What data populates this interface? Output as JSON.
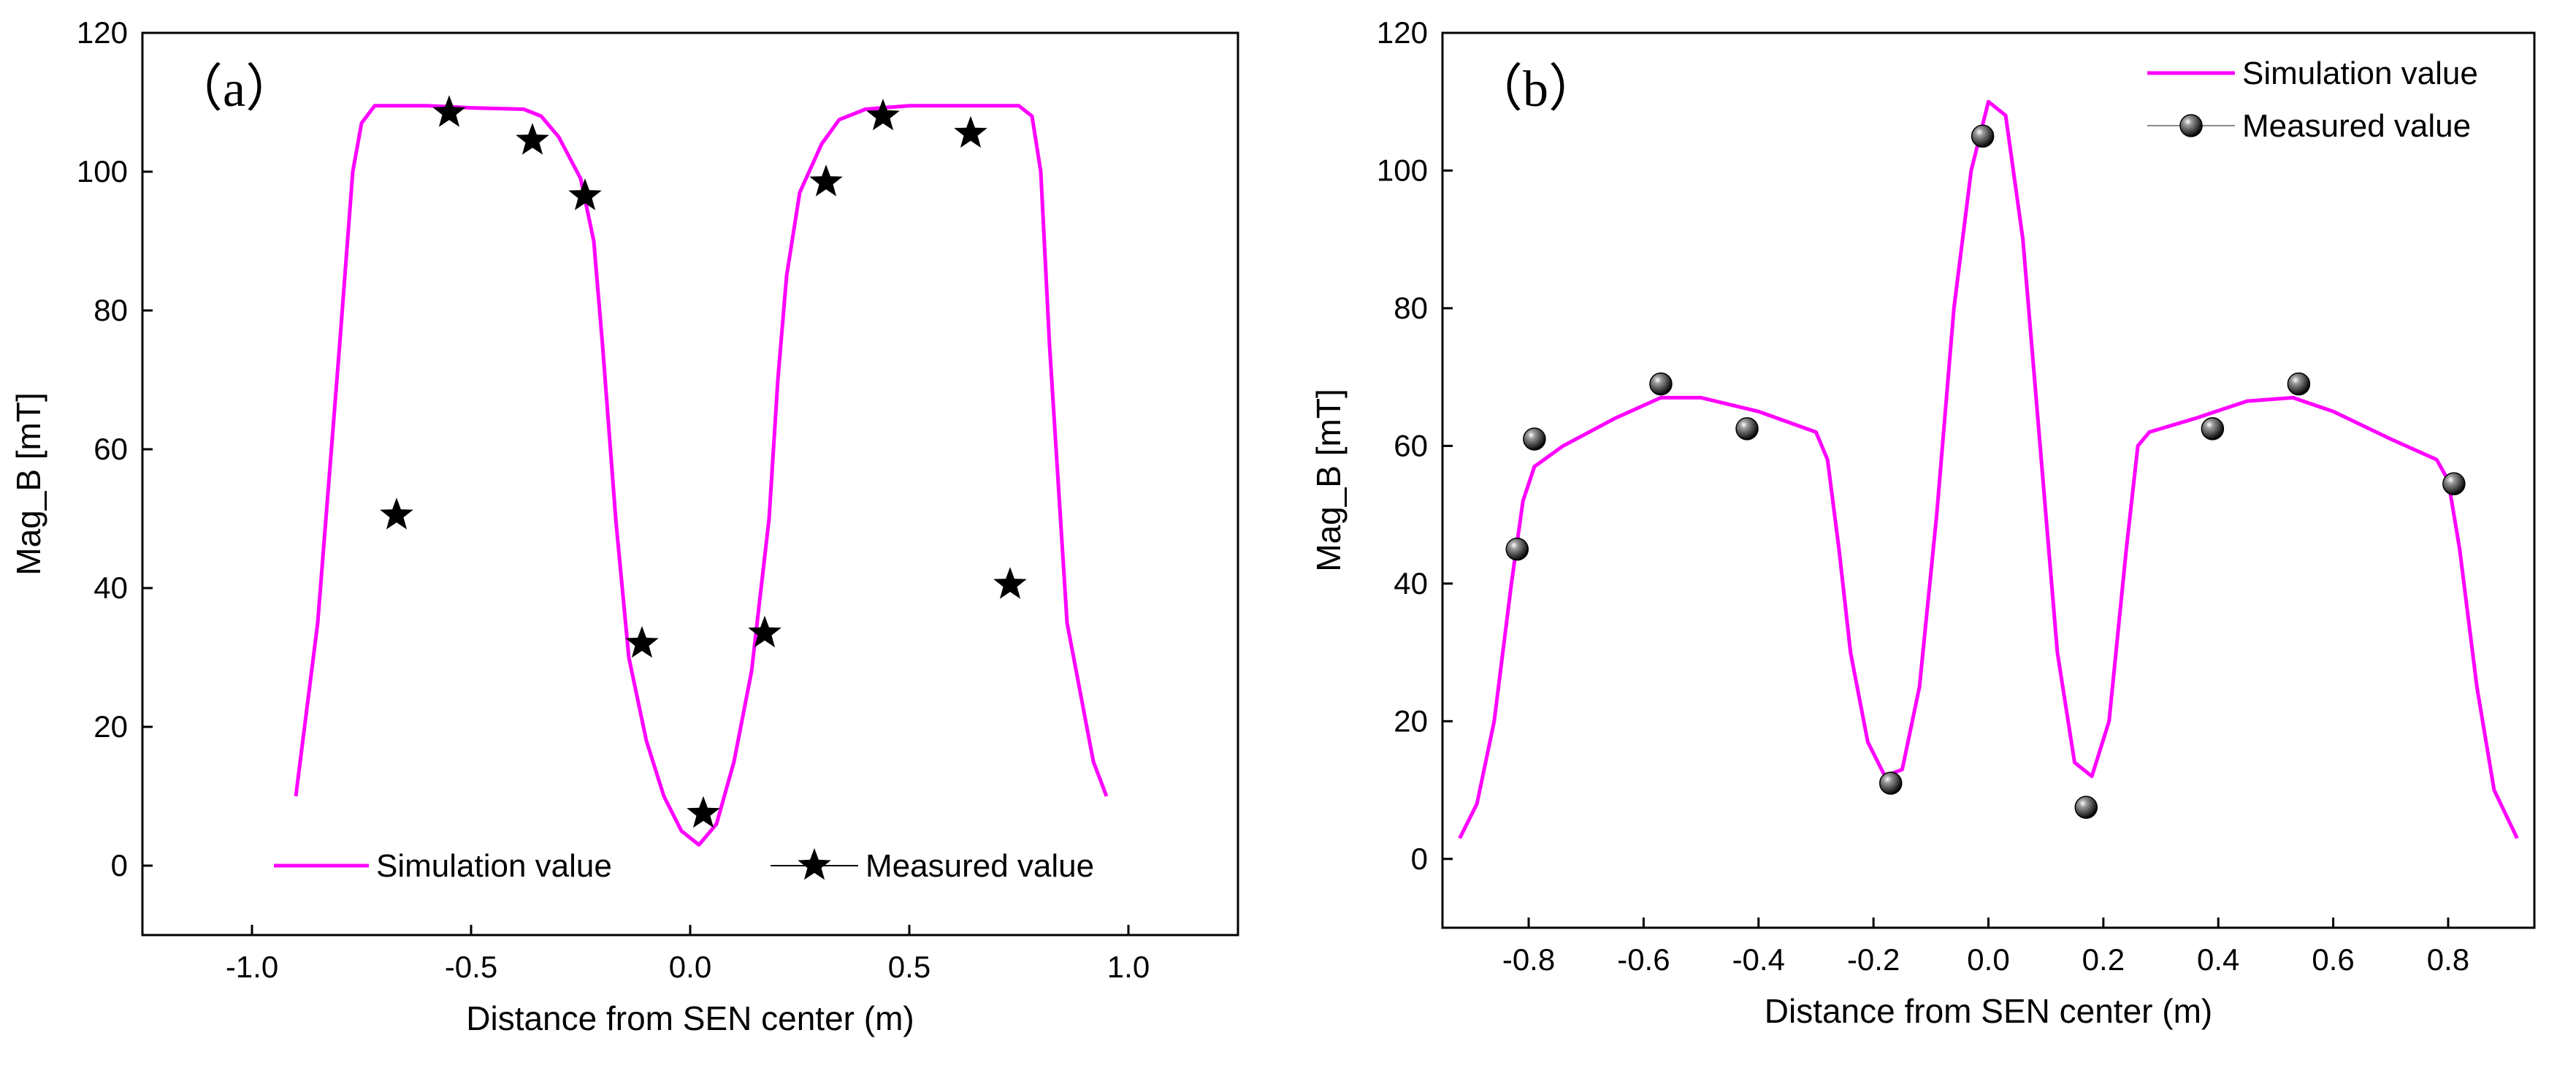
{
  "chart_data": [
    {
      "type": "line",
      "panel_label": "（a）",
      "xlabel": "Distance from SEN center (m)",
      "ylabel": "Mag_B [mT]",
      "xlim": [
        -1.25,
        1.25
      ],
      "ylim": [
        -10,
        120
      ],
      "xticks": [
        -1.0,
        -0.5,
        0.0,
        0.5,
        1.0
      ],
      "xtick_labels": [
        "-1.0",
        "-0.5",
        "0.0",
        "0.5",
        "1.0"
      ],
      "yticks": [
        0,
        20,
        40,
        60,
        80,
        100,
        120
      ],
      "ytick_labels": [
        "0",
        "20",
        "40",
        "60",
        "80",
        "100",
        "120"
      ],
      "legend_position": "bottom",
      "series": [
        {
          "name": "Simulation value",
          "kind": "line",
          "color": "#ff00ff",
          "points": [
            [
              -0.9,
              10
            ],
            [
              -0.85,
              35
            ],
            [
              -0.8,
              75
            ],
            [
              -0.77,
              100
            ],
            [
              -0.75,
              107
            ],
            [
              -0.72,
              109.5
            ],
            [
              -0.6,
              109.5
            ],
            [
              -0.5,
              109.2
            ],
            [
              -0.38,
              109
            ],
            [
              -0.34,
              108
            ],
            [
              -0.3,
              105
            ],
            [
              -0.25,
              99
            ],
            [
              -0.22,
              90
            ],
            [
              -0.2,
              75
            ],
            [
              -0.17,
              50
            ],
            [
              -0.14,
              30
            ],
            [
              -0.1,
              18
            ],
            [
              -0.06,
              10
            ],
            [
              -0.02,
              5
            ],
            [
              0.02,
              3
            ],
            [
              0.06,
              6
            ],
            [
              0.1,
              15
            ],
            [
              0.14,
              28
            ],
            [
              0.18,
              50
            ],
            [
              0.2,
              70
            ],
            [
              0.22,
              85
            ],
            [
              0.25,
              97
            ],
            [
              0.3,
              104
            ],
            [
              0.34,
              107.5
            ],
            [
              0.4,
              109
            ],
            [
              0.5,
              109.5
            ],
            [
              0.65,
              109.5
            ],
            [
              0.75,
              109.5
            ],
            [
              0.78,
              108
            ],
            [
              0.8,
              100
            ],
            [
              0.82,
              75
            ],
            [
              0.86,
              35
            ],
            [
              0.92,
              15
            ],
            [
              0.95,
              10
            ]
          ]
        },
        {
          "name": "Measured value",
          "kind": "scatter",
          "marker": "star",
          "color": "#000000",
          "points": [
            [
              -0.67,
              50.5
            ],
            [
              -0.55,
              108.5
            ],
            [
              -0.36,
              104.5
            ],
            [
              -0.24,
              96.5
            ],
            [
              -0.11,
              32
            ],
            [
              0.03,
              7.5
            ],
            [
              0.17,
              33.5
            ],
            [
              0.31,
              98.5
            ],
            [
              0.44,
              108
            ],
            [
              0.64,
              105.5
            ],
            [
              0.73,
              40.5
            ]
          ]
        }
      ]
    },
    {
      "type": "line",
      "panel_label": "（b）",
      "xlabel": "Distance from SEN center  (m)",
      "ylabel": "Mag_B [mT]",
      "xlim": [
        -0.95,
        0.95
      ],
      "ylim": [
        -10,
        120
      ],
      "xticks": [
        -0.8,
        -0.6,
        -0.4,
        -0.2,
        0.0,
        0.2,
        0.4,
        0.6,
        0.8
      ],
      "xtick_labels": [
        "-0.8",
        "-0.6",
        "-0.4",
        "-0.2",
        "0.0",
        "0.2",
        "0.4",
        "0.6",
        "0.8"
      ],
      "yticks": [
        0,
        20,
        40,
        60,
        80,
        100,
        120
      ],
      "ytick_labels": [
        "0",
        "20",
        "40",
        "60",
        "80",
        "100",
        "120"
      ],
      "legend_position": "top-right",
      "series": [
        {
          "name": "Simulation value",
          "kind": "line",
          "color": "#ff00ff",
          "points": [
            [
              -0.92,
              3
            ],
            [
              -0.89,
              8
            ],
            [
              -0.86,
              20
            ],
            [
              -0.83,
              40
            ],
            [
              -0.81,
              52
            ],
            [
              -0.79,
              57
            ],
            [
              -0.74,
              60
            ],
            [
              -0.65,
              64
            ],
            [
              -0.57,
              67
            ],
            [
              -0.5,
              67
            ],
            [
              -0.4,
              65
            ],
            [
              -0.3,
              62
            ],
            [
              -0.28,
              58
            ],
            [
              -0.26,
              45
            ],
            [
              -0.24,
              30
            ],
            [
              -0.21,
              17
            ],
            [
              -0.18,
              12
            ],
            [
              -0.15,
              13
            ],
            [
              -0.12,
              25
            ],
            [
              -0.09,
              50
            ],
            [
              -0.06,
              80
            ],
            [
              -0.03,
              100
            ],
            [
              0.0,
              110
            ],
            [
              0.03,
              108
            ],
            [
              0.06,
              90
            ],
            [
              0.09,
              60
            ],
            [
              0.12,
              30
            ],
            [
              0.15,
              14
            ],
            [
              0.18,
              12
            ],
            [
              0.21,
              20
            ],
            [
              0.24,
              45
            ],
            [
              0.26,
              60
            ],
            [
              0.28,
              62
            ],
            [
              0.36,
              64
            ],
            [
              0.45,
              66.5
            ],
            [
              0.53,
              67
            ],
            [
              0.6,
              65
            ],
            [
              0.7,
              61
            ],
            [
              0.78,
              58
            ],
            [
              0.8,
              55
            ],
            [
              0.82,
              45
            ],
            [
              0.85,
              25
            ],
            [
              0.88,
              10
            ],
            [
              0.92,
              3
            ]
          ]
        },
        {
          "name": "Measured value",
          "kind": "scatter",
          "marker": "sphere",
          "color": "#000000",
          "points": [
            [
              -0.82,
              45
            ],
            [
              -0.79,
              61
            ],
            [
              -0.57,
              69
            ],
            [
              -0.42,
              62.5
            ],
            [
              -0.17,
              11
            ],
            [
              -0.01,
              105
            ],
            [
              0.17,
              7.5
            ],
            [
              0.39,
              62.5
            ],
            [
              0.54,
              69
            ],
            [
              0.81,
              54.5
            ]
          ]
        }
      ]
    }
  ]
}
